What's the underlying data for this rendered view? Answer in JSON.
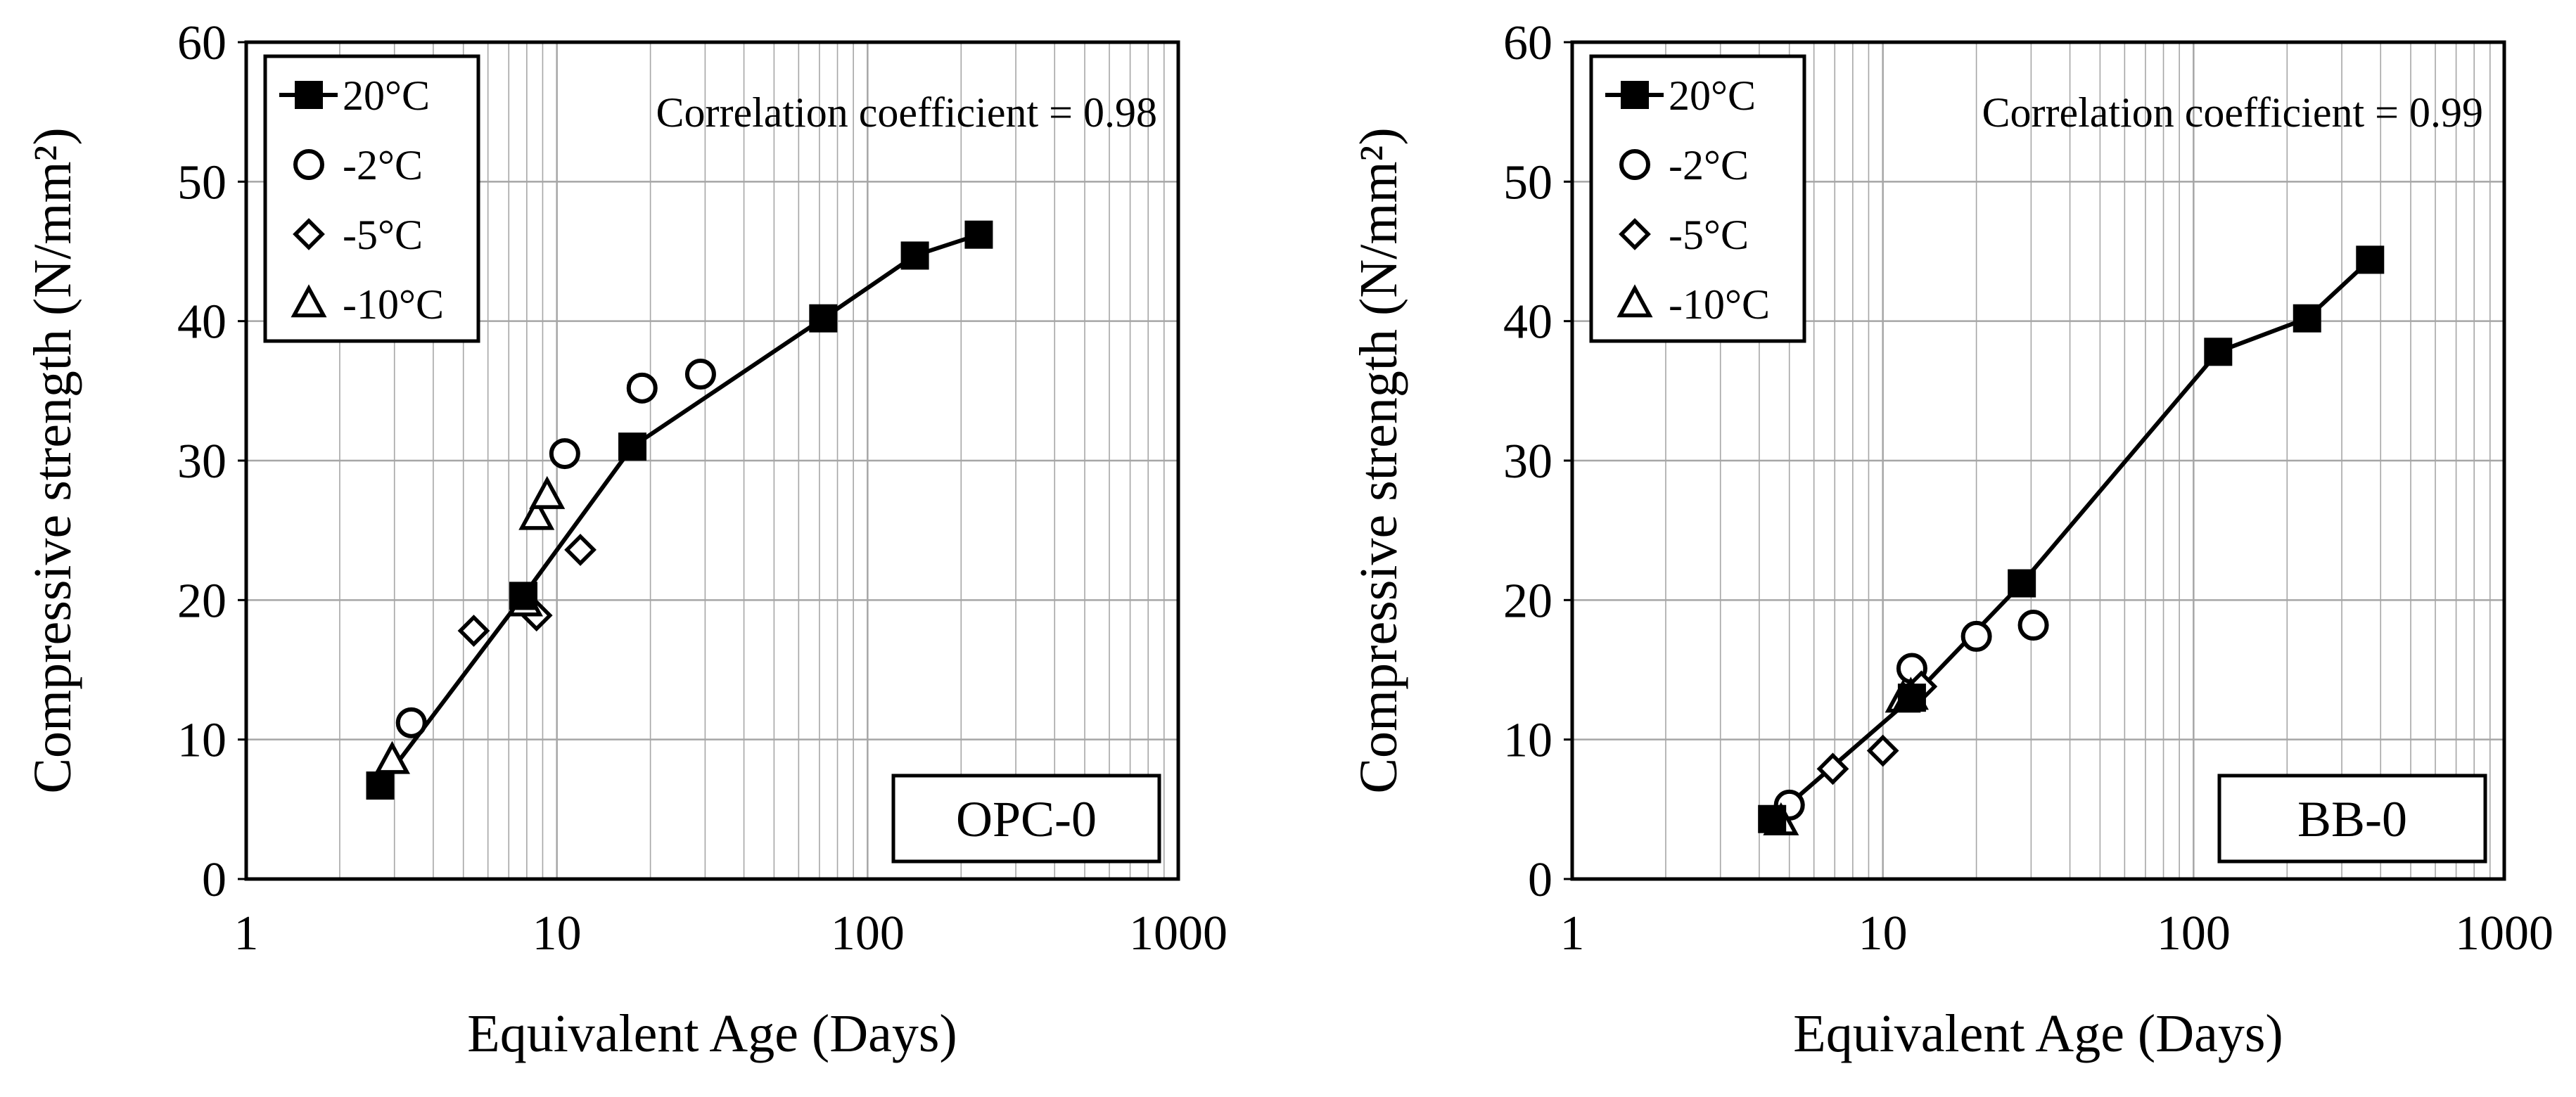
{
  "figure": {
    "title": "",
    "description_series_names": [
      "20°C",
      "-2°C",
      "-5°C",
      "-10°C"
    ]
  },
  "chart_data": [
    {
      "type": "scatter",
      "panel_label": "OPC-0",
      "correlation_text": "Correlation coefficient  = 0.98",
      "xlabel": "Equivalent Age (Days)",
      "ylabel": "Compressive strength (N/mm²)",
      "xscale": "log",
      "xlim": [
        1,
        1000
      ],
      "ylim": [
        0,
        60
      ],
      "xticks": [
        1,
        10,
        100,
        1000
      ],
      "xtick_labels": [
        "1",
        "10",
        "100",
        "1000"
      ],
      "yticks": [
        0,
        10,
        20,
        30,
        40,
        50,
        60
      ],
      "ytick_labels": [
        "0",
        "10",
        "20",
        "30",
        "40",
        "50",
        "60"
      ],
      "grid": true,
      "legend_position": "top-left",
      "series": [
        {
          "name": "20°C",
          "marker": "filled-square",
          "line": true,
          "points": [
            [
              2.7,
              6.7
            ],
            [
              7.8,
              20.3
            ],
            [
              17.5,
              31.0
            ],
            [
              72,
              40.2
            ],
            [
              142,
              44.7
            ],
            [
              228,
              46.2
            ]
          ]
        },
        {
          "name": "-2°C",
          "marker": "open-circle",
          "line": false,
          "points": [
            [
              3.4,
              11.2
            ],
            [
              10.6,
              30.5
            ],
            [
              18.8,
              35.2
            ],
            [
              29,
              36.2
            ]
          ]
        },
        {
          "name": "-5°C",
          "marker": "open-diamond",
          "line": false,
          "points": [
            [
              5.4,
              17.8
            ],
            [
              8.6,
              18.9
            ],
            [
              11.9,
              23.6
            ]
          ]
        },
        {
          "name": "-10°C",
          "marker": "open-triangle",
          "line": false,
          "points": [
            [
              2.95,
              8.5
            ],
            [
              7.9,
              19.8
            ],
            [
              8.6,
              26.0
            ],
            [
              9.3,
              27.5
            ]
          ]
        }
      ]
    },
    {
      "type": "scatter",
      "panel_label": "BB-0",
      "correlation_text": "Correlation coefficient  = 0.99",
      "xlabel": "Equivalent Age (Days)",
      "ylabel": "Compressive strength (N/mm²)",
      "xscale": "log",
      "xlim": [
        1,
        1000
      ],
      "ylim": [
        0,
        60
      ],
      "xticks": [
        1,
        10,
        100,
        1000
      ],
      "xtick_labels": [
        "1",
        "10",
        "100",
        "1000"
      ],
      "yticks": [
        0,
        10,
        20,
        30,
        40,
        50,
        60
      ],
      "ytick_labels": [
        "0",
        "10",
        "20",
        "30",
        "40",
        "50",
        "60"
      ],
      "grid": true,
      "legend_position": "top-left",
      "series": [
        {
          "name": "20°C",
          "marker": "filled-square",
          "line": true,
          "points": [
            [
              4.4,
              4.3
            ],
            [
              12.4,
              13.0
            ],
            [
              28,
              21.2
            ],
            [
              120,
              37.8
            ],
            [
              232,
              40.2
            ],
            [
              370,
              44.4
            ]
          ]
        },
        {
          "name": "-2°C",
          "marker": "open-circle",
          "line": false,
          "points": [
            [
              5.0,
              5.3
            ],
            [
              12.4,
              15.1
            ],
            [
              20.0,
              17.4
            ],
            [
              30.5,
              18.2
            ]
          ]
        },
        {
          "name": "-5°C",
          "marker": "open-diamond",
          "line": false,
          "points": [
            [
              6.9,
              7.9
            ],
            [
              10.0,
              9.2
            ],
            [
              13.3,
              13.8
            ]
          ]
        },
        {
          "name": "-10°C",
          "marker": "open-triangle",
          "line": false,
          "points": [
            [
              4.7,
              4.1
            ],
            [
              11.6,
              12.9
            ],
            [
              12.3,
              13.1
            ]
          ]
        }
      ]
    }
  ]
}
